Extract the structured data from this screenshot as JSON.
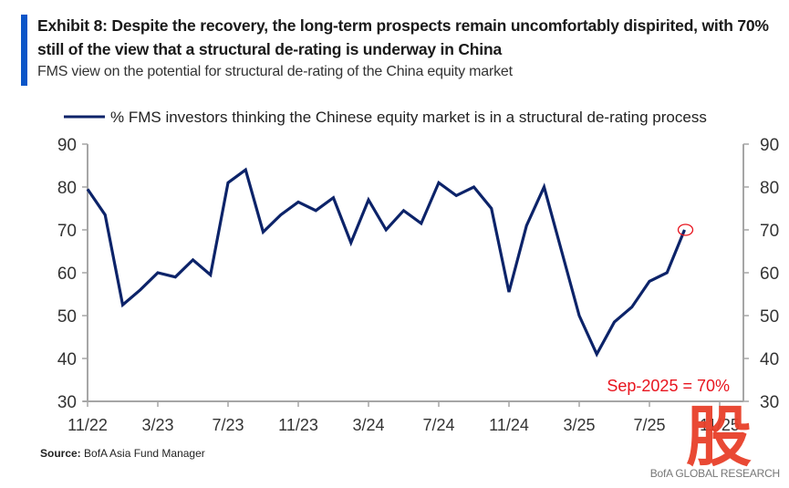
{
  "header": {
    "title": "Exhibit 8: Despite the recovery, the long-term prospects remain uncomfortably dispirited, with 70% still of the view that a structural de-rating is underway in China",
    "subtitle": "FMS view on the potential for structural de-rating of the China equity market",
    "accent_color": "#0a55c8"
  },
  "footer": {
    "source_label": "Source:",
    "source_text": " BofA Asia Fund Manager",
    "brand": "BofA GLOBAL RESEARCH",
    "watermark": "股"
  },
  "chart_data": {
    "type": "line",
    "title": "FMS view on the potential for structural de-rating of the China equity market",
    "xlabel": "",
    "ylabel": "",
    "ylim": [
      30,
      90
    ],
    "yticks": [
      30,
      40,
      50,
      60,
      70,
      80,
      90
    ],
    "secondary_yticks": [
      30,
      40,
      50,
      60,
      70,
      80,
      90
    ],
    "x_tick_labels": [
      "11/22",
      "3/23",
      "7/23",
      "11/23",
      "3/24",
      "7/24",
      "11/24",
      "3/25",
      "7/25",
      "11/25"
    ],
    "x_tick_months_from_start": [
      0,
      4,
      8,
      12,
      16,
      20,
      24,
      28,
      32,
      36
    ],
    "x_range_months": [
      0,
      37
    ],
    "grid": false,
    "legend_position": "top",
    "series": [
      {
        "name": "% FMS investors thinking the Chinese equity market is in a structural de-rating process",
        "color": "#0c2369",
        "x": [
          "Nov-22",
          "Dec-22",
          "Jan-23",
          "Feb-23",
          "Mar-23",
          "Apr-23",
          "May-23",
          "Jun-23",
          "Jul-23",
          "Aug-23",
          "Sep-23",
          "Oct-23",
          "Nov-23",
          "Dec-23",
          "Jan-24",
          "Feb-24",
          "Mar-24",
          "Apr-24",
          "May-24",
          "Jun-24",
          "Jul-24",
          "Aug-24",
          "Sep-24",
          "Oct-24",
          "Nov-24",
          "Dec-24",
          "Jan-25",
          "Feb-25",
          "Mar-25",
          "Apr-25",
          "May-25",
          "Jun-25",
          "Jul-25",
          "Aug-25",
          "Sep-25"
        ],
        "values": [
          79.5,
          73.5,
          52.5,
          56,
          60,
          59,
          63,
          59.5,
          81,
          84,
          69.5,
          73.5,
          76.5,
          74.5,
          77.5,
          67,
          77,
          70,
          74.5,
          71.5,
          81,
          78,
          80,
          75,
          55.5,
          71,
          80,
          65,
          50,
          41,
          48.5,
          52,
          58,
          60,
          70
        ]
      }
    ],
    "annotations": [
      {
        "text": "Sep-2025 = 70%",
        "color": "#e8141e",
        "target": "Sep-25",
        "marker": "circle",
        "position": "bottom-right"
      }
    ]
  }
}
